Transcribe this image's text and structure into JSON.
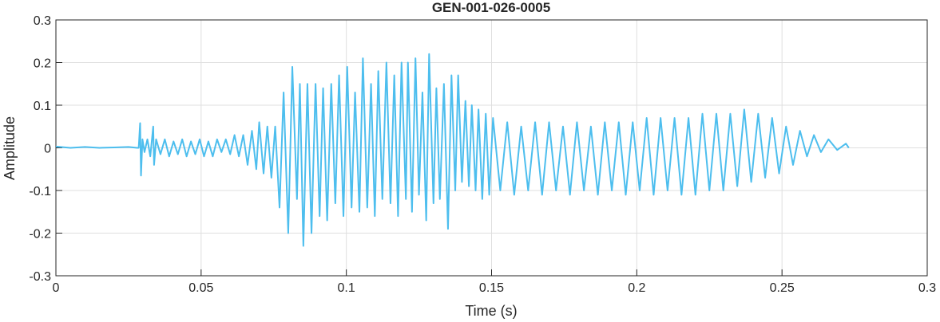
{
  "chart_data": {
    "type": "line",
    "title": "GEN-001-026-0005",
    "xlabel": "Time (s)",
    "ylabel": "Amplitude",
    "xlim": [
      0,
      0.3
    ],
    "xticks": [
      0,
      0.05,
      0.1,
      0.15,
      0.2,
      0.25,
      0.3
    ],
    "ylim": [
      -0.3,
      0.3
    ],
    "yticks": [
      -0.3,
      -0.2,
      -0.1,
      0,
      0.1,
      0.2,
      0.3
    ],
    "grid": true,
    "series": [
      {
        "color": "#4dbeee",
        "x": [
          0,
          0.005,
          0.01,
          0.015,
          0.02,
          0.025,
          0.028,
          0.0285,
          0.029,
          0.0293,
          0.0298,
          0.0305,
          0.0315,
          0.0325,
          0.0335,
          0.0338,
          0.0345,
          0.036,
          0.0375,
          0.039,
          0.0405,
          0.042,
          0.0435,
          0.045,
          0.0465,
          0.048,
          0.0495,
          0.051,
          0.0525,
          0.054,
          0.0555,
          0.057,
          0.0585,
          0.06,
          0.0615,
          0.063,
          0.0645,
          0.066,
          0.0675,
          0.069,
          0.07,
          0.0715,
          0.0728,
          0.0742,
          0.0755,
          0.077,
          0.0784,
          0.08,
          0.0814,
          0.083,
          0.084,
          0.0852,
          0.0866,
          0.088,
          0.0894,
          0.0908,
          0.092,
          0.0934,
          0.0948,
          0.0962,
          0.0975,
          0.099,
          0.1003,
          0.1018,
          0.103,
          0.1045,
          0.1057,
          0.1072,
          0.1085,
          0.1098,
          0.111,
          0.1124,
          0.1138,
          0.1152,
          0.1165,
          0.1178,
          0.119,
          0.1205,
          0.1212,
          0.1226,
          0.1238,
          0.125,
          0.1262,
          0.1275,
          0.1285,
          0.13,
          0.131,
          0.1322,
          0.1336,
          0.135,
          0.1362,
          0.1375,
          0.1385,
          0.1398,
          0.141,
          0.1422,
          0.1432,
          0.1445,
          0.1455,
          0.1468,
          0.148,
          0.1492,
          0.1505,
          0.153,
          0.1554,
          0.1578,
          0.1602,
          0.1626,
          0.165,
          0.1674,
          0.1698,
          0.1722,
          0.1746,
          0.177,
          0.1794,
          0.1818,
          0.1842,
          0.1866,
          0.189,
          0.1914,
          0.1938,
          0.1962,
          0.1986,
          0.201,
          0.2034,
          0.2058,
          0.2082,
          0.2106,
          0.213,
          0.2154,
          0.2178,
          0.2202,
          0.2226,
          0.225,
          0.2274,
          0.2298,
          0.2322,
          0.2346,
          0.237,
          0.2394,
          0.2418,
          0.2442,
          0.2466,
          0.249,
          0.2514,
          0.2538,
          0.2562,
          0.2586,
          0.261,
          0.2634,
          0.266,
          0.269,
          0.272,
          0.273
        ],
        "values": [
          0.003,
          0,
          0.002,
          0,
          0.001,
          0.002,
          0,
          0,
          0.058,
          -0.065,
          0.02,
          -0.01,
          0.02,
          -0.02,
          0.05,
          -0.04,
          0.02,
          -0.015,
          0.02,
          -0.02,
          0.015,
          -0.015,
          0.02,
          -0.02,
          0.015,
          -0.015,
          0.02,
          -0.02,
          0.015,
          -0.02,
          0.02,
          -0.01,
          0.02,
          -0.015,
          0.03,
          -0.02,
          0.03,
          -0.04,
          0.04,
          -0.05,
          0.06,
          -0.06,
          0.05,
          -0.07,
          0.05,
          -0.14,
          0.13,
          -0.2,
          0.19,
          -0.12,
          0.15,
          -0.23,
          0.15,
          -0.2,
          0.15,
          -0.16,
          0.14,
          -0.17,
          0.15,
          -0.13,
          0.17,
          -0.16,
          0.19,
          -0.14,
          0.13,
          -0.15,
          0.21,
          -0.14,
          0.15,
          -0.16,
          0.18,
          -0.12,
          0.2,
          -0.13,
          0.17,
          -0.16,
          0.2,
          -0.12,
          0.2,
          -0.15,
          0.21,
          -0.11,
          0.13,
          -0.17,
          0.22,
          -0.13,
          0.14,
          -0.12,
          0.15,
          -0.19,
          0.17,
          -0.1,
          0.17,
          -0.08,
          0.11,
          -0.09,
          0.1,
          -0.1,
          0.09,
          -0.12,
          0.08,
          -0.11,
          0.07,
          -0.1,
          0.06,
          -0.11,
          0.05,
          -0.1,
          0.06,
          -0.11,
          0.06,
          -0.1,
          0.05,
          -0.11,
          0.06,
          -0.1,
          0.05,
          -0.11,
          0.06,
          -0.1,
          0.06,
          -0.11,
          0.06,
          -0.1,
          0.07,
          -0.11,
          0.07,
          -0.1,
          0.07,
          -0.11,
          0.07,
          -0.11,
          0.08,
          -0.1,
          0.08,
          -0.1,
          0.08,
          -0.09,
          0.09,
          -0.08,
          0.08,
          -0.07,
          0.07,
          -0.06,
          0.05,
          -0.04,
          0.04,
          -0.02,
          0.03,
          -0.01,
          0.02,
          -0.005,
          0.01,
          0
        ]
      }
    ]
  }
}
